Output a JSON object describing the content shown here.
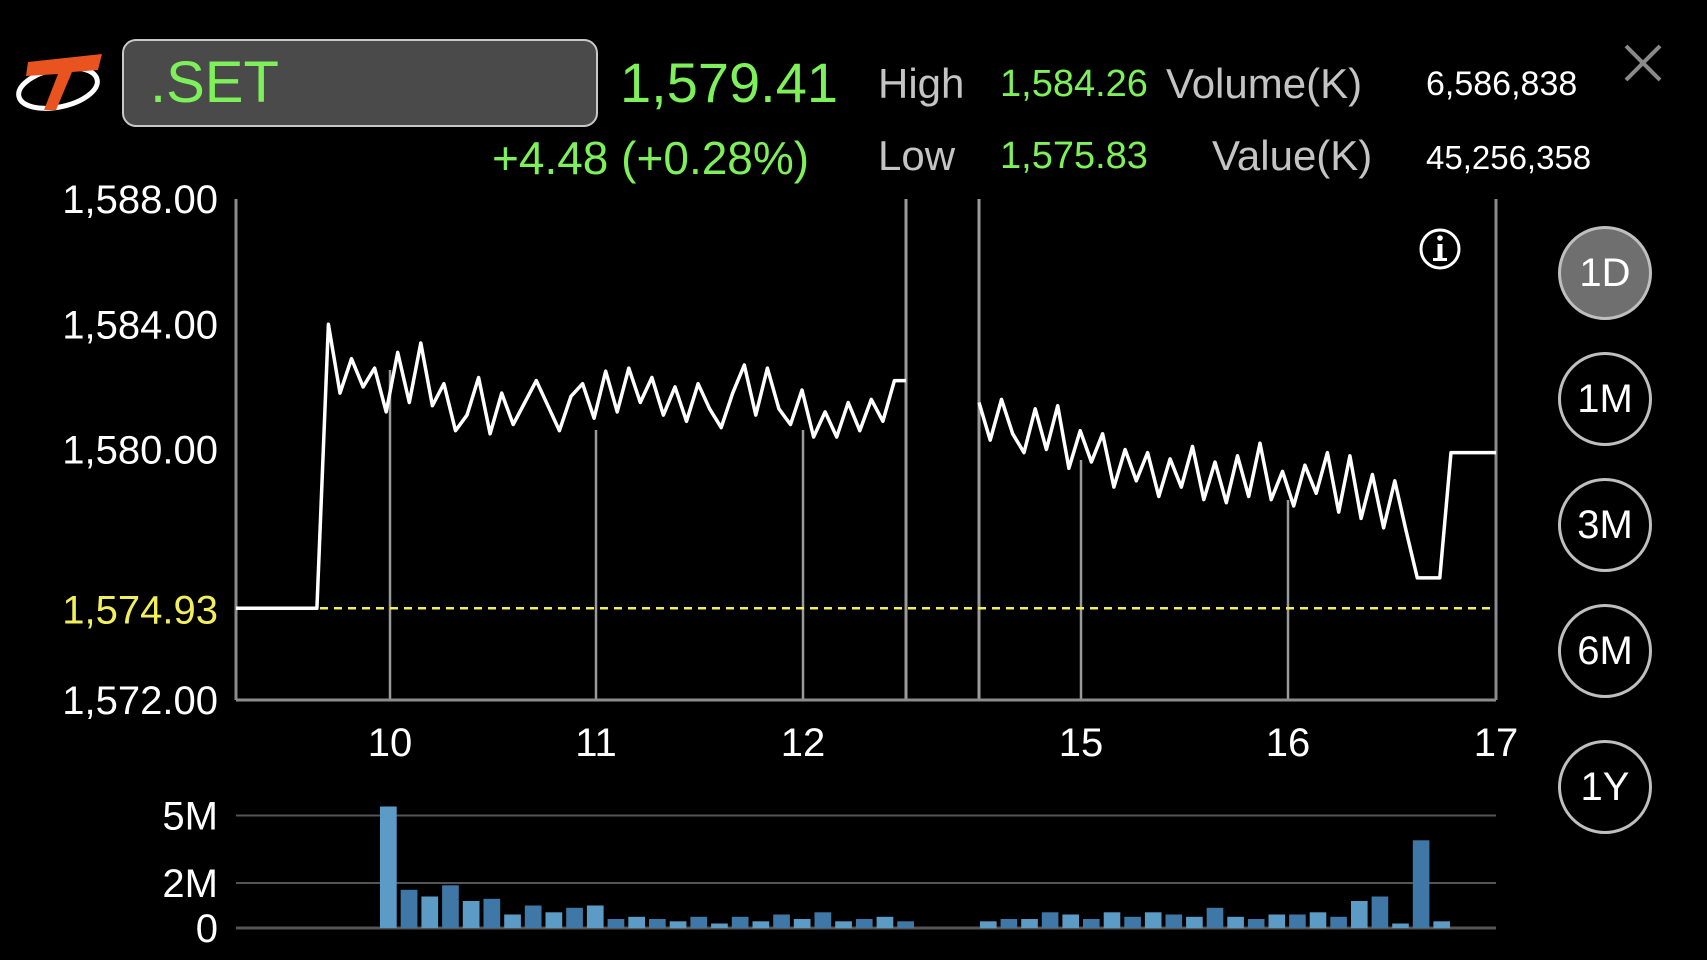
{
  "header": {
    "symbol": ".SET",
    "last_price": "1,579.41",
    "change": "+4.48 (+0.28%)",
    "high_label": "High",
    "high_value": "1,584.26",
    "low_label": "Low",
    "low_value": "1,575.83",
    "volume_label": "Volume(K)",
    "volume_value": "6,586,838",
    "value_label": "Value(K)",
    "value_value": "45,256,358"
  },
  "colors": {
    "positive": "#7df05a",
    "reference": "#f2ef5c",
    "volume_bar": "#3f78a6",
    "volume_bar_light": "#5b9bc6"
  },
  "timeframes": [
    {
      "label": "1D",
      "active": true
    },
    {
      "label": "1M",
      "active": false
    },
    {
      "label": "3M",
      "active": false
    },
    {
      "label": "6M",
      "active": false
    },
    {
      "label": "1Y",
      "active": false
    }
  ],
  "chart_data": {
    "type": "line",
    "x_ticks": [
      "10",
      "11",
      "12",
      "15",
      "16",
      "17"
    ],
    "y_ticks": [
      "1,588.00",
      "1,584.00",
      "1,580.00",
      "1,572.00"
    ],
    "reference_label": "1,574.93",
    "reference_value": 1574.93,
    "ylim": [
      1572,
      1588
    ],
    "info_icon": "info-icon",
    "price_series": {
      "morning": [
        1574.93,
        1574.93,
        1574.93,
        1574.93,
        1574.93,
        1574.93,
        1574.93,
        1574.93,
        1584.0,
        1581.8,
        1582.9,
        1582.0,
        1582.6,
        1581.2,
        1583.1,
        1581.5,
        1583.4,
        1581.4,
        1582.1,
        1580.6,
        1581.1,
        1582.3,
        1580.5,
        1581.8,
        1580.8,
        1581.5,
        1582.2,
        1581.4,
        1580.6,
        1581.7,
        1582.1,
        1581.0,
        1582.5,
        1581.2,
        1582.6,
        1581.5,
        1582.3,
        1581.1,
        1582.0,
        1580.9,
        1582.1,
        1581.3,
        1580.7,
        1581.8,
        1582.7,
        1581.1,
        1582.6,
        1581.3,
        1580.8,
        1581.9,
        1580.4,
        1581.2,
        1580.4,
        1581.5,
        1580.6,
        1581.6,
        1580.9,
        1582.2,
        1582.2
      ],
      "afternoon": [
        1581.5,
        1580.3,
        1581.6,
        1580.5,
        1579.9,
        1581.3,
        1580.0,
        1581.4,
        1579.4,
        1580.6,
        1579.6,
        1580.5,
        1578.8,
        1580.0,
        1579.0,
        1579.9,
        1578.5,
        1579.7,
        1578.8,
        1580.1,
        1578.4,
        1579.6,
        1578.3,
        1579.8,
        1578.5,
        1580.2,
        1578.4,
        1579.3,
        1578.2,
        1579.5,
        1578.6,
        1579.9,
        1578.0,
        1579.8,
        1577.8,
        1579.2,
        1577.5,
        1579.0,
        1577.4,
        1575.9,
        1575.9,
        1575.9,
        1579.9,
        1579.9,
        1579.9,
        1579.9,
        1579.9
      ]
    },
    "volume": {
      "y_ticks": [
        "5M",
        "2M",
        "0"
      ],
      "ylim": [
        0,
        5.6
      ],
      "morning": [
        5.4,
        1.7,
        1.4,
        1.9,
        1.2,
        1.3,
        0.6,
        1.0,
        0.7,
        0.9,
        1.0,
        0.4,
        0.5,
        0.4,
        0.3,
        0.5,
        0.2,
        0.5,
        0.3,
        0.6,
        0.4,
        0.7,
        0.3,
        0.4,
        0.5,
        0.3
      ],
      "afternoon": [
        0.3,
        0.4,
        0.4,
        0.7,
        0.6,
        0.4,
        0.7,
        0.5,
        0.7,
        0.6,
        0.5,
        0.9,
        0.5,
        0.4,
        0.6,
        0.6,
        0.7,
        0.5,
        1.2,
        1.4,
        0.2,
        3.9,
        0.3
      ]
    }
  }
}
